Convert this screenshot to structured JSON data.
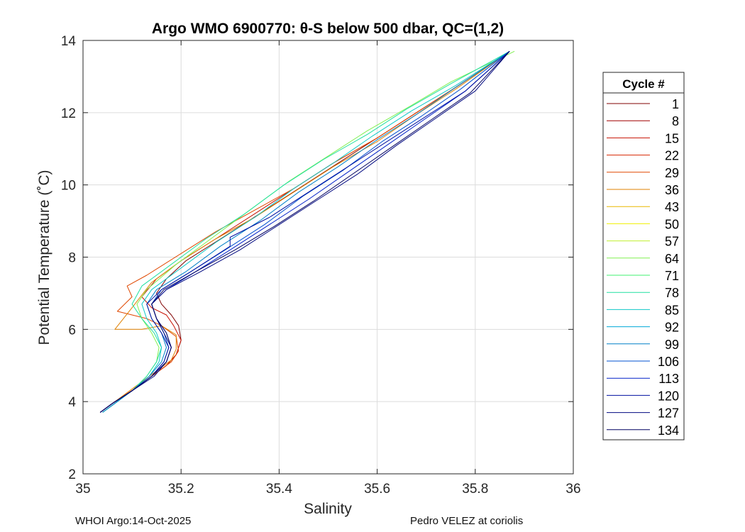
{
  "chart_data": {
    "type": "line",
    "title": "Argo WMO 6900770: θ-S below 500 dbar,  QC=(1,2)",
    "xlabel": "Salinity",
    "ylabel": "Potential Temperature (˚C)",
    "xlim": [
      35,
      36
    ],
    "ylim": [
      2,
      14
    ],
    "xticks": [
      35,
      35.2,
      35.4,
      35.6,
      35.8,
      36
    ],
    "xtick_labels": [
      "35",
      "35.2",
      "35.4",
      "35.6",
      "35.8",
      "36"
    ],
    "yticks": [
      2,
      4,
      6,
      8,
      10,
      12,
      14
    ],
    "ytick_labels": [
      "2",
      "4",
      "6",
      "8",
      "10",
      "12",
      "14"
    ],
    "grid": true,
    "legend": {
      "title": "Cycle #",
      "placement": "right",
      "entries": [
        {
          "name": "1",
          "color": "#800000"
        },
        {
          "name": "8",
          "color": "#a00000"
        },
        {
          "name": "15",
          "color": "#c81000"
        },
        {
          "name": "22",
          "color": "#d82400"
        },
        {
          "name": "29",
          "color": "#e04800"
        },
        {
          "name": "36",
          "color": "#e08000"
        },
        {
          "name": "43",
          "color": "#e8b800"
        },
        {
          "name": "50",
          "color": "#f0f000"
        },
        {
          "name": "57",
          "color": "#c0f030"
        },
        {
          "name": "64",
          "color": "#80f050"
        },
        {
          "name": "71",
          "color": "#40f070"
        },
        {
          "name": "78",
          "color": "#20e0a0"
        },
        {
          "name": "85",
          "color": "#10c8c8"
        },
        {
          "name": "92",
          "color": "#00a8d8"
        },
        {
          "name": "99",
          "color": "#0080c8"
        },
        {
          "name": "106",
          "color": "#0050d0"
        },
        {
          "name": "113",
          "color": "#0020c8"
        },
        {
          "name": "120",
          "color": "#0010a0"
        },
        {
          "name": "127",
          "color": "#000880"
        },
        {
          "name": "134",
          "color": "#000060"
        }
      ]
    },
    "series": [
      {
        "color": "#800000",
        "x": [
          35.035,
          35.06,
          35.1,
          35.14,
          35.17,
          35.19,
          35.2,
          35.195,
          35.18,
          35.16,
          35.15,
          35.17,
          35.21,
          35.28,
          35.36,
          35.44,
          35.52,
          35.6,
          35.68,
          35.76,
          35.87
        ],
        "y": [
          3.7,
          3.95,
          4.3,
          4.7,
          5.0,
          5.3,
          5.7,
          6.1,
          6.4,
          6.7,
          7.0,
          7.4,
          7.9,
          8.5,
          9.2,
          9.9,
          10.6,
          11.3,
          12.0,
          12.7,
          13.7
        ]
      },
      {
        "color": "#c81000",
        "x": [
          35.035,
          35.06,
          35.1,
          35.14,
          35.17,
          35.19,
          35.2,
          35.185,
          35.17,
          35.14,
          35.12,
          35.15,
          35.2,
          35.27,
          35.35,
          35.43,
          35.51,
          35.6,
          35.68,
          35.76,
          35.87
        ],
        "y": [
          3.7,
          3.95,
          4.3,
          4.7,
          5.0,
          5.3,
          5.7,
          6.1,
          6.4,
          6.6,
          6.9,
          7.4,
          7.9,
          8.5,
          9.2,
          9.9,
          10.6,
          11.3,
          12.0,
          12.7,
          13.7
        ]
      },
      {
        "color": "#e04800",
        "x": [
          35.04,
          35.065,
          35.11,
          35.15,
          35.18,
          35.195,
          35.19,
          35.16,
          35.13,
          35.07,
          35.1,
          35.09,
          35.13,
          35.2,
          35.27,
          35.35,
          35.43,
          35.51,
          35.6,
          35.68,
          35.76,
          35.87
        ],
        "y": [
          3.75,
          4.0,
          4.4,
          4.8,
          5.1,
          5.4,
          5.8,
          6.1,
          6.3,
          6.5,
          6.9,
          7.2,
          7.5,
          8.1,
          8.7,
          9.3,
          9.9,
          10.6,
          11.3,
          12.0,
          12.7,
          13.7
        ]
      },
      {
        "color": "#e08000",
        "x": [
          35.04,
          35.07,
          35.11,
          35.15,
          35.18,
          35.19,
          35.19,
          35.16,
          35.12,
          35.065,
          35.1,
          35.14,
          35.2,
          35.27,
          35.35,
          35.43,
          35.51,
          35.6,
          35.68,
          35.76,
          35.87
        ],
        "y": [
          3.75,
          4.05,
          4.45,
          4.85,
          5.15,
          5.45,
          5.85,
          6.1,
          6.0,
          6.0,
          6.6,
          7.3,
          7.9,
          8.5,
          9.1,
          9.8,
          10.5,
          11.2,
          11.95,
          12.65,
          13.7
        ]
      },
      {
        "color": "#80f050",
        "x": [
          35.04,
          35.065,
          35.1,
          35.13,
          35.15,
          35.155,
          35.14,
          35.12,
          35.11,
          35.13,
          35.19,
          35.26,
          35.34,
          35.42,
          35.5,
          35.58,
          35.67,
          35.75,
          35.88
        ],
        "y": [
          3.7,
          3.95,
          4.3,
          4.7,
          5.1,
          5.5,
          5.9,
          6.3,
          6.7,
          7.1,
          7.8,
          8.5,
          9.3,
          10.1,
          10.8,
          11.5,
          12.2,
          12.85,
          13.7
        ]
      },
      {
        "color": "#20e0a0",
        "x": [
          35.04,
          35.065,
          35.1,
          35.13,
          35.15,
          35.16,
          35.145,
          35.12,
          35.1,
          35.12,
          35.18,
          35.25,
          35.33,
          35.41,
          35.49,
          35.58,
          35.66,
          35.75,
          35.87
        ],
        "y": [
          3.7,
          3.95,
          4.3,
          4.7,
          5.1,
          5.5,
          5.9,
          6.3,
          6.7,
          7.2,
          7.8,
          8.5,
          9.2,
          10.0,
          10.7,
          11.4,
          12.1,
          12.8,
          13.7
        ]
      },
      {
        "color": "#10c8c8",
        "x": [
          35.04,
          35.065,
          35.1,
          35.135,
          35.155,
          35.16,
          35.15,
          35.13,
          35.12,
          35.14,
          35.2,
          35.27,
          35.35,
          35.43,
          35.51,
          35.59,
          35.67,
          35.76,
          35.87
        ],
        "y": [
          3.7,
          3.95,
          4.3,
          4.7,
          5.1,
          5.5,
          5.9,
          6.3,
          6.7,
          7.1,
          7.7,
          8.4,
          9.1,
          9.9,
          10.6,
          11.35,
          12.05,
          12.75,
          13.7
        ]
      },
      {
        "color": "#0080c8",
        "x": [
          35.04,
          35.065,
          35.1,
          35.135,
          35.16,
          35.17,
          35.16,
          35.14,
          35.13,
          35.15,
          35.21,
          35.28,
          35.36,
          35.44,
          35.52,
          35.6,
          35.68,
          35.76,
          35.87
        ],
        "y": [
          3.7,
          3.95,
          4.3,
          4.7,
          5.1,
          5.5,
          5.9,
          6.3,
          6.7,
          7.1,
          7.6,
          8.3,
          9.0,
          9.8,
          10.5,
          11.25,
          11.95,
          12.7,
          13.7
        ]
      },
      {
        "color": "#0050d0",
        "x": [
          35.035,
          35.06,
          35.1,
          35.14,
          35.165,
          35.175,
          35.165,
          35.15,
          35.14,
          35.16,
          35.22,
          35.29,
          35.37,
          35.45,
          35.53,
          35.61,
          35.69,
          35.77,
          35.87
        ],
        "y": [
          3.7,
          3.95,
          4.3,
          4.7,
          5.1,
          5.5,
          5.9,
          6.3,
          6.7,
          7.1,
          7.6,
          8.2,
          8.9,
          9.7,
          10.4,
          11.2,
          11.9,
          12.65,
          13.7
        ]
      },
      {
        "color": "#0020c8",
        "x": [
          35.035,
          35.06,
          35.1,
          35.14,
          35.17,
          35.18,
          35.17,
          35.15,
          35.14,
          35.17,
          35.23,
          35.3,
          35.38,
          35.46,
          35.54,
          35.62,
          35.7,
          35.78,
          35.87
        ],
        "y": [
          3.7,
          3.95,
          4.3,
          4.7,
          5.1,
          5.5,
          5.9,
          6.3,
          6.7,
          7.1,
          7.6,
          8.2,
          8.9,
          9.6,
          10.35,
          11.1,
          11.85,
          12.6,
          13.7
        ]
      },
      {
        "color": "#0010a0",
        "x": [
          35.035,
          35.06,
          35.1,
          35.14,
          35.165,
          35.175,
          35.16,
          35.14,
          35.13,
          35.16,
          35.22,
          35.3,
          35.3,
          35.38,
          35.46,
          35.54,
          35.62,
          35.7,
          35.78,
          35.87
        ],
        "y": [
          3.7,
          3.95,
          4.3,
          4.7,
          5.1,
          5.5,
          5.9,
          6.3,
          6.7,
          7.1,
          7.6,
          8.3,
          8.55,
          9.1,
          9.8,
          10.5,
          11.2,
          11.9,
          12.6,
          13.7
        ]
      },
      {
        "color": "#000880",
        "x": [
          35.035,
          35.06,
          35.1,
          35.145,
          35.17,
          35.18,
          35.165,
          35.15,
          35.14,
          35.17,
          35.24,
          35.32,
          35.4,
          35.48,
          35.56,
          35.64,
          35.72,
          35.8,
          35.87
        ],
        "y": [
          3.7,
          3.95,
          4.3,
          4.7,
          5.1,
          5.5,
          5.9,
          6.3,
          6.7,
          7.1,
          7.6,
          8.2,
          8.9,
          9.6,
          10.3,
          11.1,
          11.85,
          12.6,
          13.7
        ]
      },
      {
        "color": "#000060",
        "x": [
          35.035,
          35.06,
          35.1,
          35.14,
          35.17,
          35.18,
          35.17,
          35.15,
          35.14,
          35.165,
          35.23,
          35.31,
          35.39,
          35.47,
          35.55,
          35.63,
          35.71,
          35.79,
          35.87
        ],
        "y": [
          3.7,
          3.95,
          4.3,
          4.7,
          5.1,
          5.5,
          5.9,
          6.3,
          6.7,
          7.1,
          7.6,
          8.2,
          8.85,
          9.55,
          10.3,
          11.05,
          11.8,
          12.55,
          13.7
        ]
      }
    ]
  },
  "footer": {
    "left": "WHOI Argo:14-Oct-2025",
    "right": "Pedro VELEZ at coriolis"
  }
}
